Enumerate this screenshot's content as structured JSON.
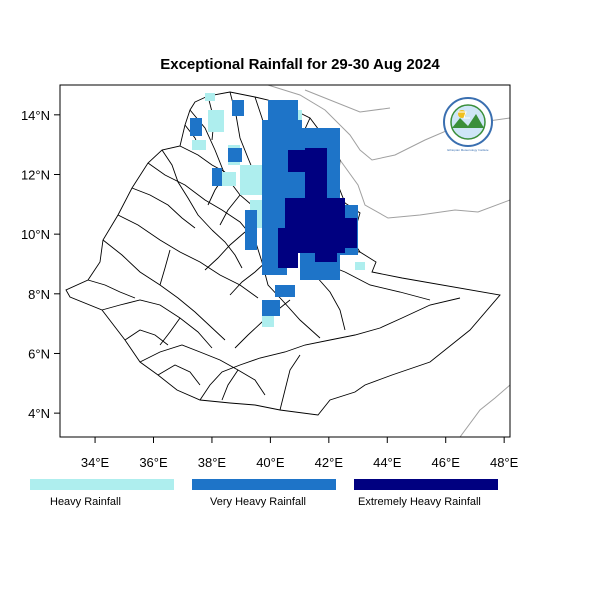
{
  "title": "Exceptional Rainfall for 29-30 Aug 2024",
  "map": {
    "lon_range": [
      32.8,
      48.2
    ],
    "lat_range": [
      3.2,
      15.0
    ],
    "x_ticks": [
      {
        "value": 34,
        "label": "34°E"
      },
      {
        "value": 36,
        "label": "36°E"
      },
      {
        "value": 38,
        "label": "38°E"
      },
      {
        "value": 40,
        "label": "40°E"
      },
      {
        "value": 42,
        "label": "42°E"
      },
      {
        "value": 44,
        "label": "44°E"
      },
      {
        "value": 46,
        "label": "46°E"
      },
      {
        "value": 48,
        "label": "48°E"
      }
    ],
    "y_ticks": [
      {
        "value": 4,
        "label": "4°N"
      },
      {
        "value": 6,
        "label": "6°N"
      },
      {
        "value": 8,
        "label": "8°N"
      },
      {
        "value": 10,
        "label": "10°N"
      },
      {
        "value": 12,
        "label": "12°N"
      },
      {
        "value": 14,
        "label": "14°N"
      }
    ],
    "boundary_color": "#000000",
    "neighbor_border_color": "#a0a0a0"
  },
  "logo": {
    "text": "Ethiopian Meteorology Institute"
  },
  "legend": [
    {
      "label": "Heavy Rainfall",
      "color": "#aeeeee"
    },
    {
      "label": "Very Heavy Rainfall",
      "color": "#1e74c8"
    },
    {
      "label": "Extremely Heavy Rainfall",
      "color": "#000080"
    }
  ]
}
